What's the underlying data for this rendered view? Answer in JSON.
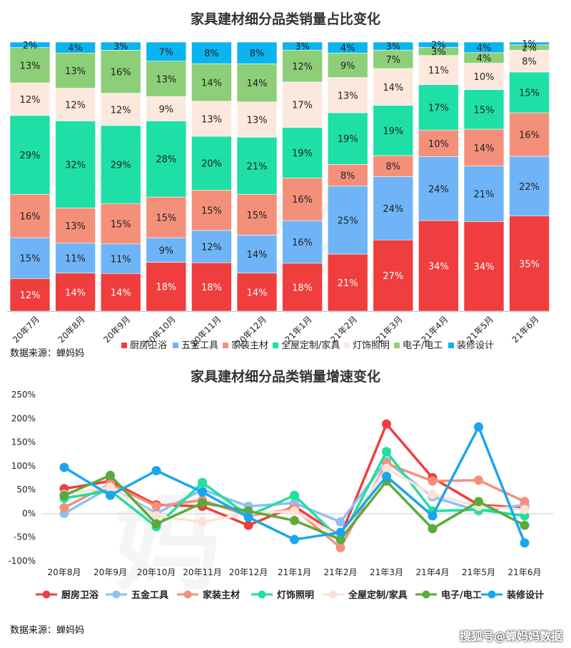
{
  "chart_data": [
    {
      "type": "bar",
      "stacked": true,
      "percent": true,
      "title": "家具建材细分品类销量占比变化",
      "categories": [
        "20年7月",
        "20年8月",
        "20年9月",
        "20年10月",
        "20年11月",
        "20年12月",
        "21年1月",
        "21年2月",
        "21年3月",
        "21年4月",
        "21年5月",
        "21年6月"
      ],
      "series": [
        {
          "name": "厨房卫浴",
          "color": "#f03d3d",
          "values": [
            12,
            14,
            14,
            18,
            18,
            14,
            18,
            21,
            27,
            34,
            34,
            35
          ]
        },
        {
          "name": "五金工具",
          "color": "#6eb4f7",
          "values": [
            15,
            11,
            11,
            9,
            12,
            14,
            16,
            25,
            24,
            24,
            21,
            22
          ]
        },
        {
          "name": "家装主材",
          "color": "#f4907a",
          "values": [
            16,
            13,
            15,
            15,
            15,
            15,
            16,
            8,
            8,
            10,
            14,
            16
          ]
        },
        {
          "name": "全屋定制/家具",
          "color": "#1ee0a6",
          "values": [
            29,
            32,
            29,
            28,
            20,
            21,
            19,
            19,
            19,
            17,
            15,
            15
          ]
        },
        {
          "name": "灯饰照明",
          "color": "#fde8de",
          "values": [
            12,
            12,
            12,
            9,
            13,
            13,
            17,
            13,
            14,
            11,
            10,
            8
          ]
        },
        {
          "name": "电子/电工",
          "color": "#8ccf78",
          "values": [
            13,
            13,
            16,
            13,
            14,
            14,
            12,
            9,
            7,
            3,
            4,
            2
          ]
        },
        {
          "name": "装修设计",
          "color": "#0ab4ef",
          "values": [
            2,
            4,
            3,
            7,
            8,
            8,
            3,
            4,
            3,
            2,
            4,
            1
          ]
        }
      ],
      "source": "数据来源：蝉妈妈"
    },
    {
      "type": "line",
      "title": "家具建材细分品类销量增速变化",
      "categories": [
        "20年8月",
        "20年9月",
        "20年10月",
        "20年11月",
        "20年12月",
        "21年1月",
        "21年2月",
        "21年3月",
        "21年4月",
        "21年5月",
        "21年6月"
      ],
      "y_ticks": [
        "250%",
        "200%",
        "150%",
        "100%",
        "50%",
        "0%",
        "-50%",
        "-100%"
      ],
      "ylim": [
        -100,
        250
      ],
      "series": [
        {
          "name": "厨房卫浴",
          "color": "#f03d3d",
          "values": [
            52,
            68,
            18,
            15,
            -25,
            15,
            -48,
            188,
            75,
            18,
            12
          ]
        },
        {
          "name": "五金工具",
          "color": "#8ec0f5",
          "values": [
            0,
            55,
            0,
            50,
            15,
            22,
            -18,
            110,
            35,
            5,
            18
          ]
        },
        {
          "name": "家装主材",
          "color": "#f4907a",
          "values": [
            12,
            62,
            15,
            28,
            -5,
            10,
            -72,
            105,
            68,
            70,
            25
          ]
        },
        {
          "name": "灯饰照明",
          "color": "#20e09a",
          "values": [
            32,
            48,
            -28,
            65,
            -5,
            38,
            -55,
            130,
            5,
            8,
            -5
          ]
        },
        {
          "name": "全屋定制/家具",
          "color": "#fde1d6",
          "values": [
            40,
            55,
            -5,
            -18,
            0,
            5,
            -50,
            95,
            40,
            15,
            8
          ]
        },
        {
          "name": "电子/电工",
          "color": "#5aab3a",
          "values": [
            38,
            80,
            -22,
            22,
            5,
            -15,
            -55,
            68,
            -32,
            25,
            -25
          ]
        },
        {
          "name": "装修设计",
          "color": "#1aa6ef",
          "values": [
            97,
            38,
            90,
            45,
            -8,
            -55,
            -40,
            78,
            -5,
            182,
            -62
          ]
        }
      ],
      "source": "数据来源：蝉妈妈"
    }
  ],
  "watermark": "搜狐号@蝉妈妈数据"
}
